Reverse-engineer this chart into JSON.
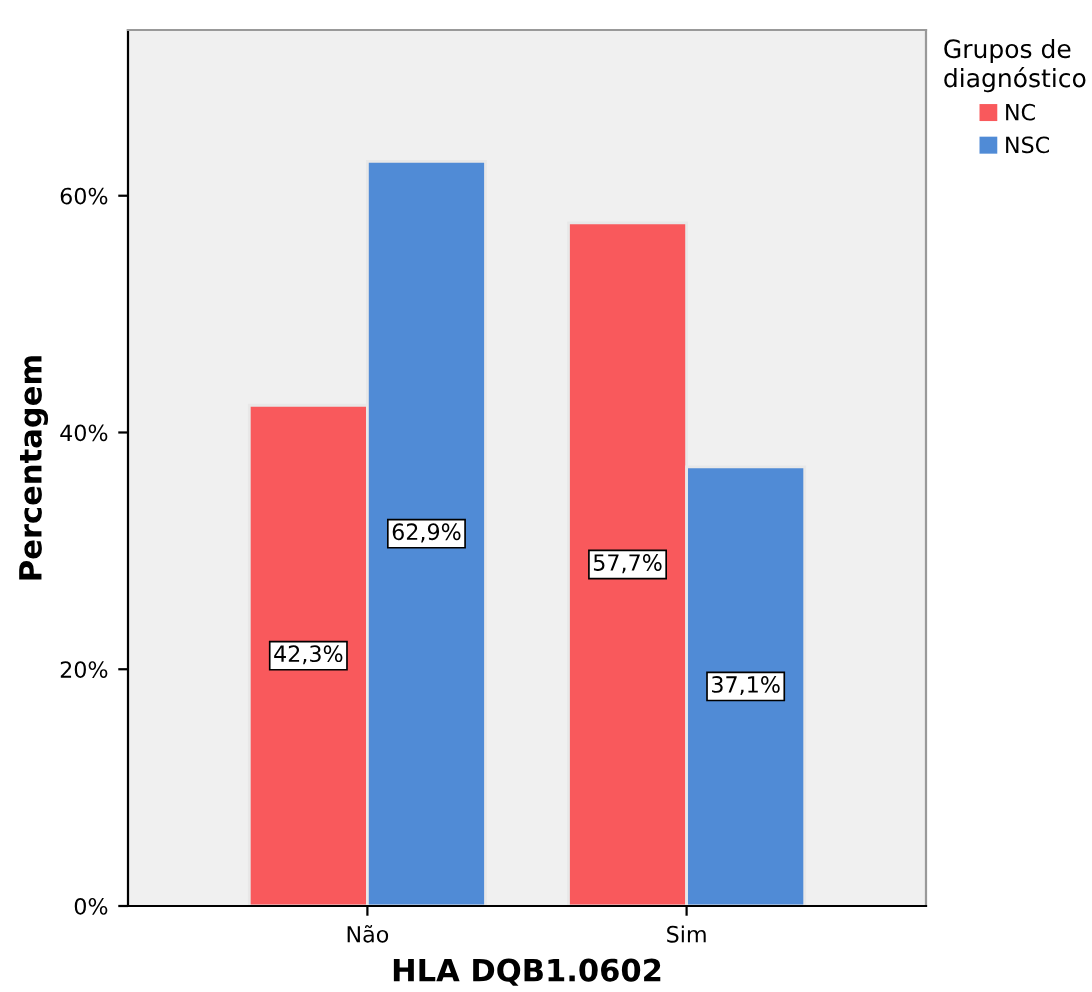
{
  "chart_data": {
    "type": "bar",
    "xlabel": "HLA DQB1.0602",
    "ylabel": "Percentagem",
    "legend_title": "Grupos de\ndiagnóstico",
    "categories": [
      "Não",
      "Sim"
    ],
    "series": [
      {
        "name": "NC",
        "color": "#f9595c",
        "values": [
          42.3,
          57.7
        ],
        "value_labels": [
          "42,3%",
          "57,7%"
        ]
      },
      {
        "name": "NSC",
        "color": "#508bd6",
        "values": [
          62.9,
          37.1
        ],
        "value_labels": [
          "62,9%",
          "37,1%"
        ]
      }
    ],
    "ylim": [
      0,
      74
    ],
    "yticks": [
      {
        "value": 0,
        "label": "0%"
      },
      {
        "value": 20,
        "label": "20%"
      },
      {
        "value": 40,
        "label": "40%"
      },
      {
        "value": 60,
        "label": "60%"
      }
    ],
    "grid": false,
    "legend": "top right"
  }
}
